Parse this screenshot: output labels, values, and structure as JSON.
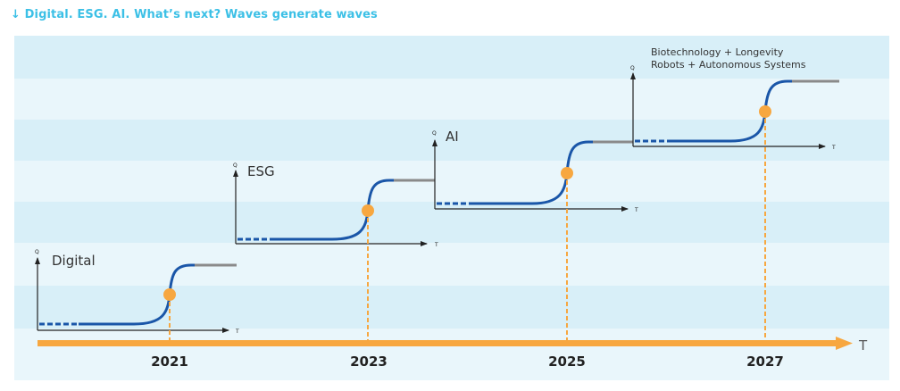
{
  "title": "↓ Digital. ESG. AI. What’s next? Waves generate waves",
  "colors": {
    "band_light": "#e9f6fb",
    "band_dark": "#d8eff8",
    "curve": "#1a56a8",
    "tail": "#8a8a8a",
    "timeline": "#f7a740",
    "marker": "#f7a740",
    "axis": "#222222",
    "text": "#333333"
  },
  "timeline": {
    "axis_label": "T",
    "years": [
      "2021",
      "2023",
      "2025",
      "2027"
    ]
  },
  "waves": [
    {
      "name": "Digital",
      "y_axis_label": "Q",
      "x_axis_label": "T",
      "year": "2021"
    },
    {
      "name": "ESG",
      "y_axis_label": "Q",
      "x_axis_label": "T",
      "year": "2023"
    },
    {
      "name": "AI",
      "y_axis_label": "Q",
      "x_axis_label": "T",
      "year": "2025"
    },
    {
      "name_lines": [
        "Biotechnology + Longevity",
        "Robots + Autonomous Systems"
      ],
      "y_axis_label": "Q",
      "x_axis_label": "T",
      "year": "2027"
    }
  ]
}
